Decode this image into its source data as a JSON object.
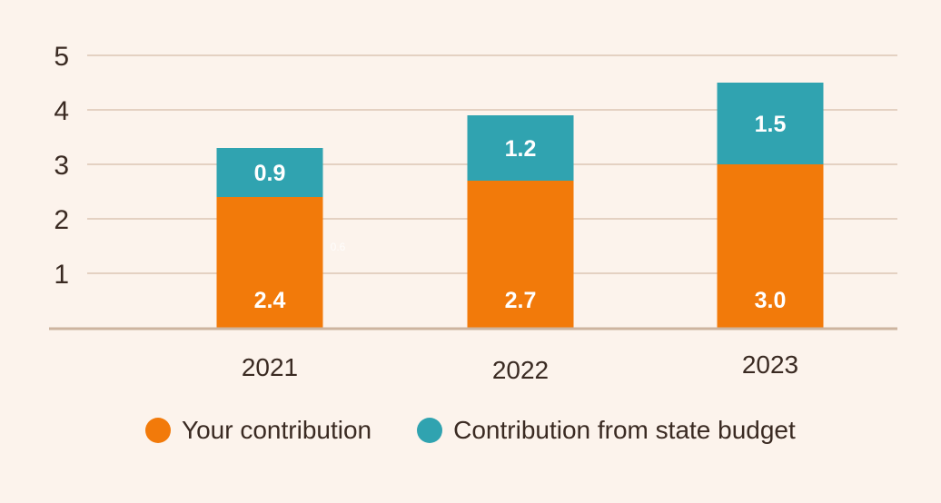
{
  "chart_data": {
    "type": "bar",
    "stacked": true,
    "categories": [
      "2021",
      "2022",
      "2023"
    ],
    "series": [
      {
        "name": "Your contribution",
        "values": [
          2.4,
          2.7,
          3.0
        ],
        "labels": [
          "2.4",
          "2.7",
          "3.0"
        ],
        "color": "#f27a0a"
      },
      {
        "name": "Contribution from state budget",
        "values": [
          0.9,
          1.2,
          1.5
        ],
        "labels": [
          "0.9",
          "1.2",
          "1.5"
        ],
        "color": "#30a3b0"
      }
    ],
    "yticks": [
      "1",
      "2",
      "3",
      "4",
      "5"
    ],
    "ylim": [
      0,
      5
    ],
    "grid": true,
    "legend_position": "bottom",
    "stray_label": "0.6"
  }
}
